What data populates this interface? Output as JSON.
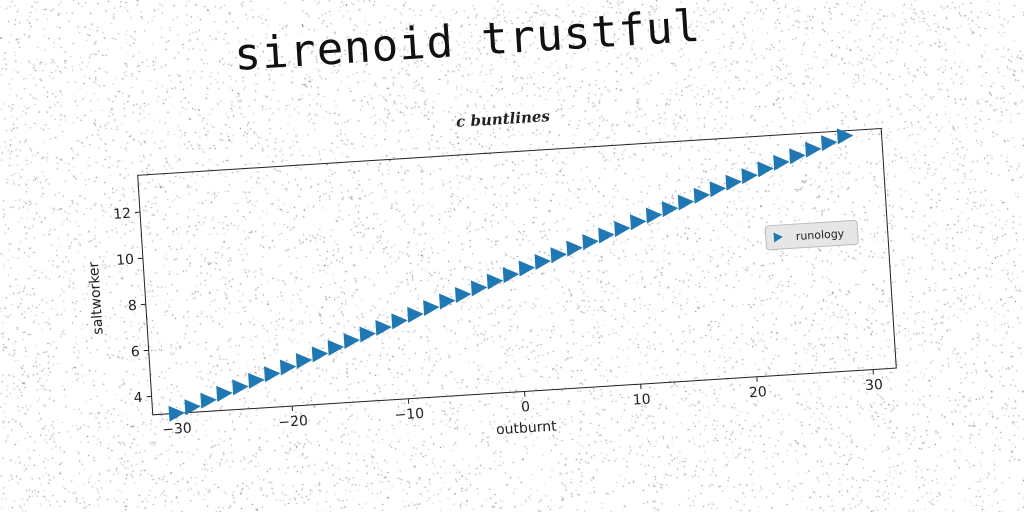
{
  "title": "sirenoid trustful",
  "subtitle": "c buntlines",
  "chart_data": {
    "type": "scatter",
    "marker": "triangle-right",
    "color": "#1f77b4",
    "xlabel": "outburnt",
    "ylabel": "saltworker",
    "xlim": [
      -32,
      32
    ],
    "ylim": [
      3.2,
      13.6
    ],
    "xticks": [
      -30,
      -20,
      -10,
      0,
      10,
      20,
      30
    ],
    "xtick_labels": [
      "−30",
      "−20",
      "−10",
      "0",
      "10",
      "20",
      "30"
    ],
    "yticks": [
      4,
      6,
      8,
      10,
      12
    ],
    "ytick_labels": [
      "4",
      "6",
      "8",
      "10",
      "12"
    ],
    "grid": false,
    "legend_position": "center-right",
    "series": [
      {
        "name": "runology",
        "x": [
          -30.0,
          -28.6,
          -27.2,
          -25.8,
          -24.4,
          -23.0,
          -21.6,
          -20.2,
          -18.8,
          -17.4,
          -16.0,
          -14.6,
          -13.2,
          -11.8,
          -10.4,
          -9.0,
          -7.6,
          -6.2,
          -4.8,
          -3.4,
          -2.0,
          -0.6,
          0.8,
          2.2,
          3.6,
          5.0,
          6.4,
          7.8,
          9.2,
          10.6,
          12.0,
          13.4,
          14.8,
          16.2,
          17.6,
          19.0,
          20.4,
          21.8,
          23.2,
          24.6,
          26.0,
          27.4,
          28.8
        ],
        "y": [
          3.2,
          3.44,
          3.68,
          3.93,
          4.17,
          4.41,
          4.65,
          4.9,
          5.14,
          5.38,
          5.62,
          5.87,
          6.11,
          6.35,
          6.59,
          6.83,
          7.08,
          7.32,
          7.56,
          7.8,
          8.05,
          8.29,
          8.53,
          8.77,
          9.02,
          9.26,
          9.5,
          9.74,
          9.98,
          10.23,
          10.47,
          10.71,
          10.95,
          11.2,
          11.44,
          11.68,
          11.92,
          12.17,
          12.41,
          12.65,
          12.89,
          13.13,
          13.38
        ]
      }
    ]
  }
}
